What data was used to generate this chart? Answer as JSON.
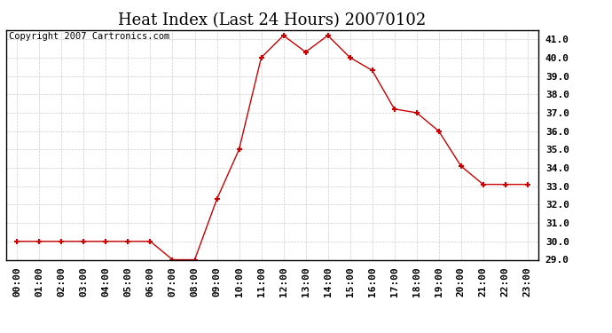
{
  "title": "Heat Index (Last 24 Hours) 20070102",
  "copyright": "Copyright 2007 Cartronics.com",
  "hours": [
    "00:00",
    "01:00",
    "02:00",
    "03:00",
    "04:00",
    "05:00",
    "06:00",
    "07:00",
    "08:00",
    "09:00",
    "10:00",
    "11:00",
    "12:00",
    "13:00",
    "14:00",
    "15:00",
    "16:00",
    "17:00",
    "18:00",
    "19:00",
    "20:00",
    "21:00",
    "22:00",
    "23:00"
  ],
  "values": [
    30.0,
    30.0,
    30.0,
    30.0,
    30.0,
    30.0,
    30.0,
    29.0,
    29.0,
    32.3,
    35.0,
    40.0,
    41.2,
    40.3,
    41.2,
    40.0,
    39.3,
    37.2,
    37.0,
    36.0,
    34.1,
    33.1,
    33.1,
    33.1
  ],
  "line_color": "#cc0000",
  "marker": "+",
  "marker_size": 5,
  "marker_color": "#cc0000",
  "background_color": "#ffffff",
  "plot_bg_color": "#ffffff",
  "grid_color": "#cccccc",
  "ylim": [
    29.0,
    41.5
  ],
  "yticks": [
    29.0,
    30.0,
    31.0,
    32.0,
    33.0,
    34.0,
    35.0,
    36.0,
    37.0,
    38.0,
    39.0,
    40.0,
    41.0
  ],
  "title_fontsize": 13,
  "tick_fontsize": 8,
  "copyright_fontsize": 7.5
}
